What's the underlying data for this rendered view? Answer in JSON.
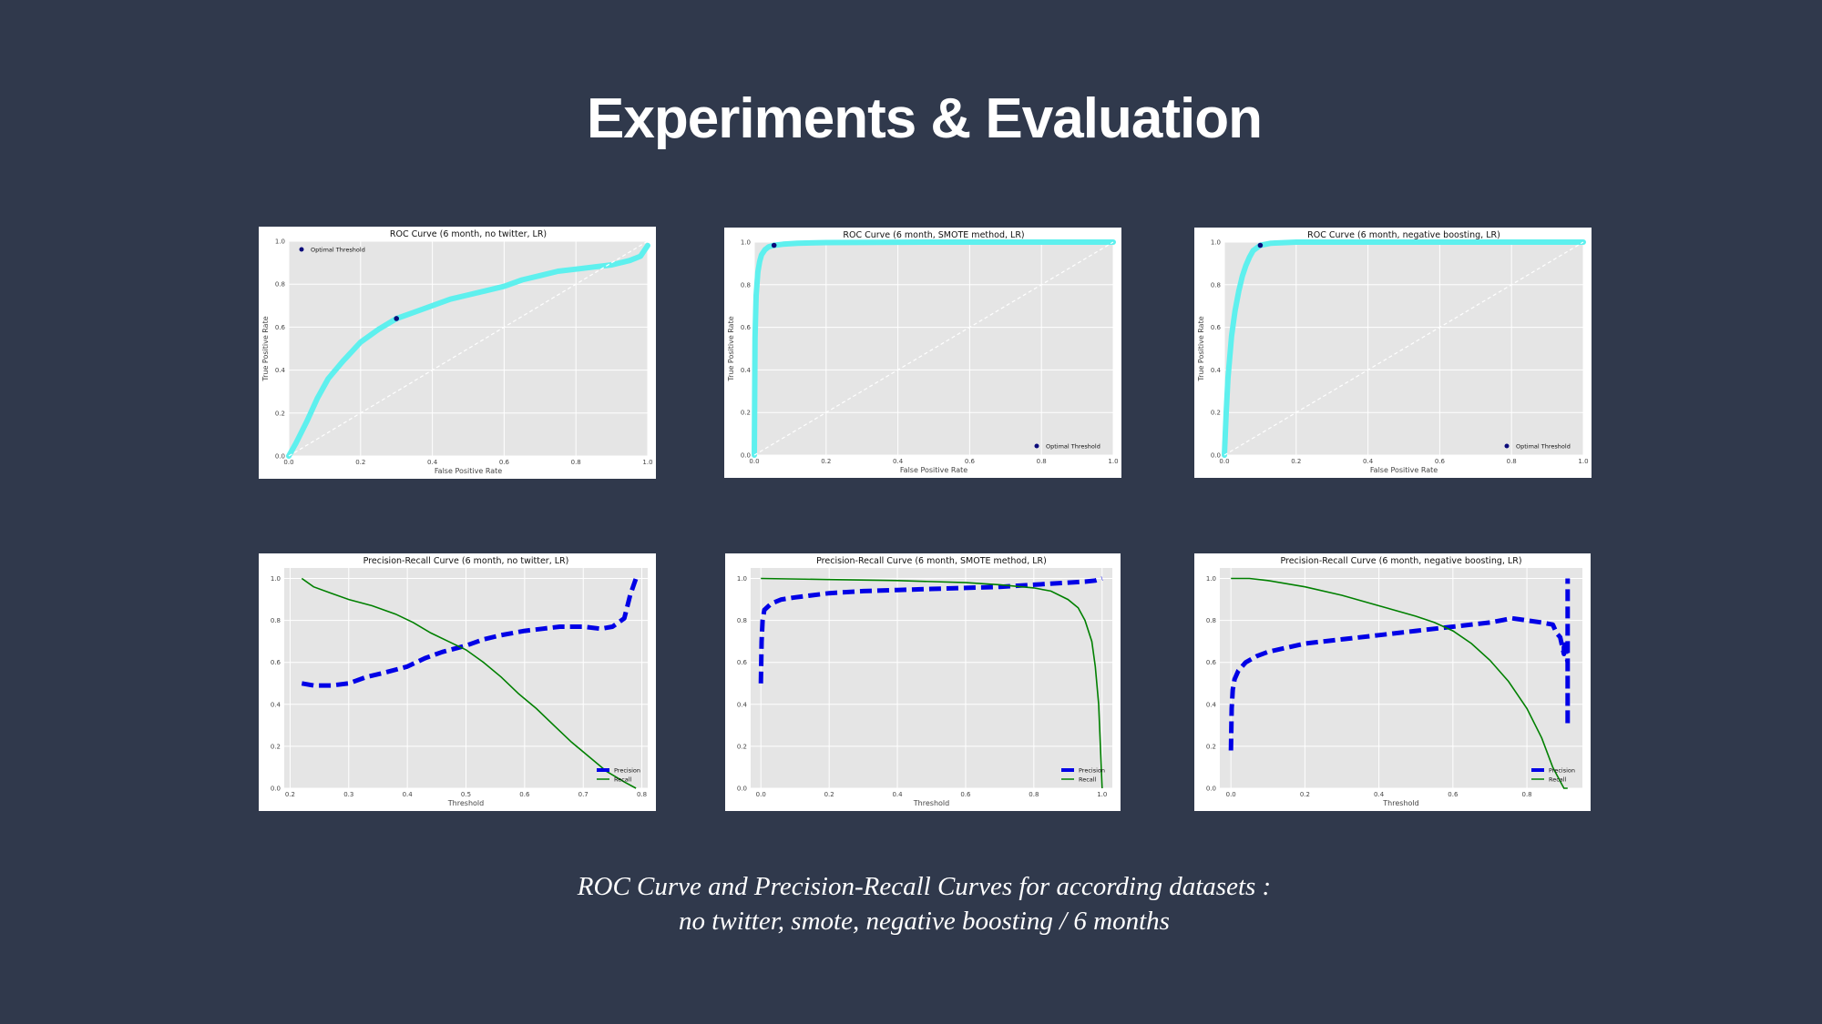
{
  "slide": {
    "title": "Experiments & Evaluation",
    "caption_line1": "ROC Curve and Precision-Recall Curves for according datasets :",
    "caption_line2": "no twitter, smote, negative boosting / 6 months"
  },
  "colors": {
    "background": "#30394c",
    "plot_bg": "#e5e5e5",
    "roc_curve": "#5ef0ee",
    "optimal_point": "#0b0b7a",
    "precision": "#0000e6",
    "recall": "#008000",
    "diagonal": "#ffffff"
  },
  "chart_data": [
    {
      "type": "line",
      "title": "ROC Curve (6 month, no twitter, LR)",
      "xlabel": "False Positive Rate",
      "ylabel": "True Positive Rate",
      "xlim": [
        0,
        1
      ],
      "ylim": [
        0,
        1
      ],
      "xticks": [
        "0.0",
        "0.2",
        "0.4",
        "0.6",
        "0.8",
        "1.0"
      ],
      "yticks": [
        "0.0",
        "0.2",
        "0.4",
        "0.6",
        "0.8",
        "1.0"
      ],
      "grid": true,
      "legend_position": "top-left",
      "series": [
        {
          "kind": "roc",
          "x": [
            0,
            0.02,
            0.05,
            0.08,
            0.11,
            0.15,
            0.2,
            0.25,
            0.3,
            0.35,
            0.4,
            0.45,
            0.5,
            0.55,
            0.6,
            0.65,
            0.7,
            0.75,
            0.8,
            0.85,
            0.9,
            0.95,
            0.98,
            1.0
          ],
          "y": [
            0,
            0.06,
            0.16,
            0.27,
            0.36,
            0.44,
            0.53,
            0.59,
            0.64,
            0.67,
            0.7,
            0.73,
            0.75,
            0.77,
            0.79,
            0.82,
            0.84,
            0.86,
            0.87,
            0.88,
            0.89,
            0.91,
            0.93,
            0.98
          ]
        },
        {
          "kind": "diagonal",
          "x": [
            0,
            1
          ],
          "y": [
            0,
            1
          ]
        },
        {
          "kind": "point",
          "name": "Optimal Threshold",
          "x": [
            0.3
          ],
          "y": [
            0.64
          ]
        }
      ]
    },
    {
      "type": "line",
      "title": "ROC Curve (6 month, SMOTE method, LR)",
      "xlabel": "False Positive Rate",
      "ylabel": "True Positive Rate",
      "xlim": [
        0,
        1
      ],
      "ylim": [
        0,
        1
      ],
      "xticks": [
        "0.0",
        "0.2",
        "0.4",
        "0.6",
        "0.8",
        "1.0"
      ],
      "yticks": [
        "0.0",
        "0.2",
        "0.4",
        "0.6",
        "0.8",
        "1.0"
      ],
      "grid": true,
      "legend_position": "bottom-right",
      "series": [
        {
          "kind": "roc",
          "x": [
            0,
            0.002,
            0.005,
            0.01,
            0.015,
            0.02,
            0.03,
            0.04,
            0.055,
            0.08,
            0.12,
            0.2,
            0.5,
            1.0
          ],
          "y": [
            0,
            0.55,
            0.75,
            0.86,
            0.91,
            0.94,
            0.965,
            0.978,
            0.985,
            0.99,
            0.995,
            0.998,
            1.0,
            1.0
          ]
        },
        {
          "kind": "diagonal",
          "x": [
            0,
            1
          ],
          "y": [
            0,
            1
          ]
        },
        {
          "kind": "point",
          "name": "Optimal Threshold",
          "x": [
            0.055
          ],
          "y": [
            0.985
          ]
        }
      ]
    },
    {
      "type": "line",
      "title": "ROC Curve (6 month, negative boosting, LR)",
      "xlabel": "False Positive Rate",
      "ylabel": "True Positive Rate",
      "xlim": [
        0,
        1
      ],
      "ylim": [
        0,
        1
      ],
      "xticks": [
        "0.0",
        "0.2",
        "0.4",
        "0.6",
        "0.8",
        "1.0"
      ],
      "yticks": [
        "0.0",
        "0.2",
        "0.4",
        "0.6",
        "0.8",
        "1.0"
      ],
      "grid": true,
      "legend_position": "bottom-right",
      "series": [
        {
          "kind": "roc",
          "x": [
            0,
            0.005,
            0.01,
            0.02,
            0.03,
            0.04,
            0.05,
            0.06,
            0.07,
            0.08,
            0.1,
            0.13,
            0.2,
            0.5,
            1.0
          ],
          "y": [
            0,
            0.2,
            0.36,
            0.56,
            0.68,
            0.77,
            0.84,
            0.89,
            0.93,
            0.96,
            0.985,
            0.995,
            1.0,
            1.0,
            1.0
          ]
        },
        {
          "kind": "diagonal",
          "x": [
            0,
            1
          ],
          "y": [
            0,
            1
          ]
        },
        {
          "kind": "point",
          "name": "Optimal Threshold",
          "x": [
            0.1
          ],
          "y": [
            0.985
          ]
        }
      ]
    },
    {
      "type": "line",
      "title": "Precision-Recall Curve (6 month, no twitter, LR)",
      "xlabel": "Threshold",
      "ylabel": "",
      "xlim": [
        0.19,
        0.81
      ],
      "ylim": [
        0,
        1.05
      ],
      "xticks": [
        "0.2",
        "0.3",
        "0.4",
        "0.5",
        "0.6",
        "0.7",
        "0.8"
      ],
      "yticks": [
        "0.0",
        "0.2",
        "0.4",
        "0.6",
        "0.8",
        "1.0"
      ],
      "grid": true,
      "legend_position": "bottom-right",
      "series": [
        {
          "name": "Precision",
          "kind": "precision",
          "x": [
            0.22,
            0.24,
            0.27,
            0.3,
            0.33,
            0.36,
            0.4,
            0.43,
            0.46,
            0.5,
            0.53,
            0.56,
            0.6,
            0.63,
            0.66,
            0.7,
            0.73,
            0.75,
            0.77,
            0.78,
            0.79
          ],
          "y": [
            0.5,
            0.49,
            0.49,
            0.5,
            0.53,
            0.55,
            0.58,
            0.62,
            0.65,
            0.68,
            0.71,
            0.73,
            0.75,
            0.76,
            0.77,
            0.77,
            0.76,
            0.77,
            0.81,
            0.92,
            1.0
          ]
        },
        {
          "name": "Recall",
          "kind": "recall",
          "x": [
            0.22,
            0.24,
            0.27,
            0.3,
            0.34,
            0.38,
            0.41,
            0.44,
            0.47,
            0.5,
            0.53,
            0.56,
            0.59,
            0.62,
            0.65,
            0.68,
            0.71,
            0.74,
            0.77,
            0.79
          ],
          "y": [
            1.0,
            0.96,
            0.93,
            0.9,
            0.87,
            0.83,
            0.79,
            0.74,
            0.7,
            0.66,
            0.6,
            0.53,
            0.45,
            0.38,
            0.3,
            0.22,
            0.15,
            0.08,
            0.03,
            0.0
          ]
        }
      ]
    },
    {
      "type": "line",
      "title": "Precision-Recall Curve (6 month, SMOTE method, LR)",
      "xlabel": "Threshold",
      "ylabel": "",
      "xlim": [
        -0.03,
        1.03
      ],
      "ylim": [
        0,
        1.05
      ],
      "xticks": [
        "0.0",
        "0.2",
        "0.4",
        "0.6",
        "0.8",
        "1.0"
      ],
      "yticks": [
        "0.0",
        "0.2",
        "0.4",
        "0.6",
        "0.8",
        "1.0"
      ],
      "grid": true,
      "legend_position": "bottom-right",
      "series": [
        {
          "name": "Precision",
          "kind": "precision",
          "x": [
            0.0,
            0.002,
            0.005,
            0.01,
            0.03,
            0.06,
            0.1,
            0.2,
            0.3,
            0.4,
            0.5,
            0.6,
            0.7,
            0.8,
            0.9,
            0.95,
            0.98,
            1.0
          ],
          "y": [
            0.5,
            0.7,
            0.8,
            0.85,
            0.88,
            0.9,
            0.91,
            0.93,
            0.94,
            0.945,
            0.95,
            0.955,
            0.96,
            0.97,
            0.98,
            0.985,
            0.99,
            1.0
          ]
        },
        {
          "name": "Recall",
          "kind": "recall",
          "x": [
            0.0,
            0.2,
            0.4,
            0.6,
            0.7,
            0.8,
            0.85,
            0.9,
            0.93,
            0.95,
            0.97,
            0.98,
            0.99,
            0.995,
            1.0
          ],
          "y": [
            1.0,
            0.995,
            0.99,
            0.98,
            0.97,
            0.955,
            0.94,
            0.9,
            0.86,
            0.8,
            0.7,
            0.58,
            0.4,
            0.2,
            0.0
          ]
        }
      ]
    },
    {
      "type": "line",
      "title": "Precision-Recall Curve (6 month, negative boosting, LR)",
      "xlabel": "Threshold",
      "ylabel": "",
      "xlim": [
        -0.03,
        0.95
      ],
      "ylim": [
        0,
        1.05
      ],
      "xticks": [
        "0.0",
        "0.2",
        "0.4",
        "0.6",
        "0.8"
      ],
      "yticks": [
        "0.0",
        "0.2",
        "0.4",
        "0.6",
        "0.8",
        "1.0"
      ],
      "grid": true,
      "legend_position": "bottom-right",
      "series": [
        {
          "name": "Precision",
          "kind": "precision",
          "x": [
            0.0,
            0.002,
            0.005,
            0.01,
            0.02,
            0.04,
            0.07,
            0.1,
            0.2,
            0.3,
            0.4,
            0.5,
            0.6,
            0.7,
            0.76,
            0.8,
            0.84,
            0.87,
            0.88,
            0.89,
            0.9,
            0.9,
            0.91,
            0.91,
            0.91
          ],
          "y": [
            0.18,
            0.38,
            0.47,
            0.52,
            0.56,
            0.6,
            0.63,
            0.65,
            0.69,
            0.71,
            0.73,
            0.75,
            0.77,
            0.79,
            0.81,
            0.8,
            0.79,
            0.78,
            0.74,
            0.72,
            0.64,
            0.7,
            0.6,
            0.3,
            1.0
          ]
        },
        {
          "name": "Recall",
          "kind": "recall",
          "x": [
            0.0,
            0.05,
            0.1,
            0.2,
            0.3,
            0.4,
            0.5,
            0.55,
            0.6,
            0.65,
            0.7,
            0.75,
            0.8,
            0.84,
            0.87,
            0.9,
            0.91
          ],
          "y": [
            1.0,
            1.0,
            0.99,
            0.96,
            0.92,
            0.87,
            0.82,
            0.79,
            0.75,
            0.69,
            0.61,
            0.51,
            0.38,
            0.24,
            0.1,
            0.0,
            0.0
          ]
        }
      ]
    }
  ]
}
